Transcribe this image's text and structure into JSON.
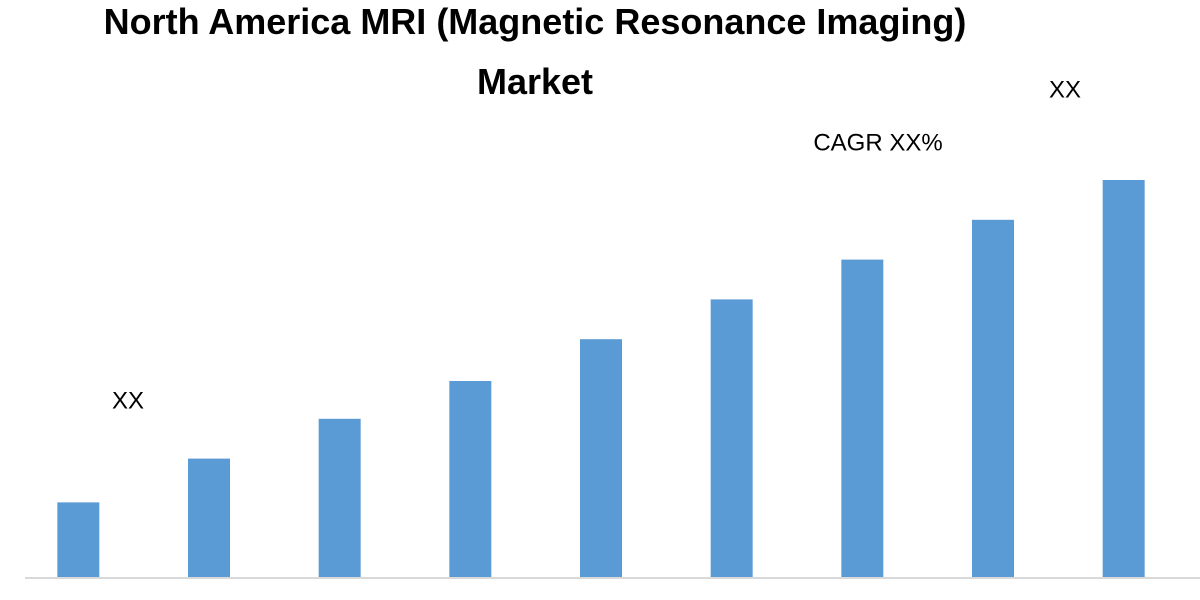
{
  "chart_data": {
    "type": "bar",
    "title": "North America MRI (Magnetic Resonance Imaging) Market",
    "categories": [
      null,
      null,
      null,
      null,
      null,
      null,
      null,
      null,
      null
    ],
    "values": [
      19,
      30,
      40,
      49.5,
      60,
      70,
      80,
      90,
      100
    ],
    "color": "#5b9bd5",
    "ylim": [
      0,
      100
    ],
    "annotations": [
      "XX",
      "CAGR XX%",
      "XX"
    ]
  }
}
